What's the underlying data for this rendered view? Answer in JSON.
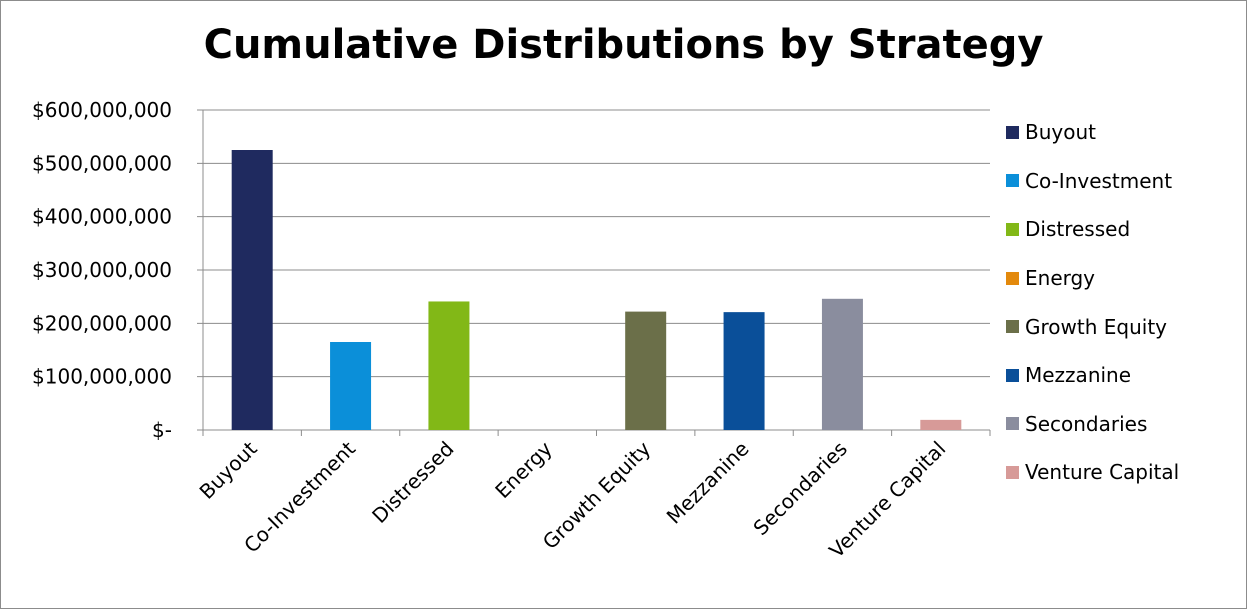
{
  "chart_data": {
    "type": "bar",
    "title": "Cumulative Distributions by Strategy",
    "categories": [
      "Buyout",
      "Co-Investment",
      "Distressed",
      "Energy",
      "Growth Equity",
      "Mezzanine",
      "Secondaries",
      "Venture Capital"
    ],
    "values": [
      525000000,
      165000000,
      241000000,
      0,
      222000000,
      221000000,
      246000000,
      19000000
    ],
    "colors": [
      "#1f2a5f",
      "#0b8fd9",
      "#82b817",
      "#e3890c",
      "#6b6f49",
      "#0a4f99",
      "#8a8d9e",
      "#d79a98"
    ],
    "ylim": [
      0,
      600000000
    ],
    "yticks": [
      0,
      100000000,
      200000000,
      300000000,
      400000000,
      500000000,
      600000000
    ],
    "ytick_labels": [
      "$-",
      "$100,000,000",
      "$200,000,000",
      "$300,000,000",
      "$400,000,000",
      "$500,000,000",
      "$600,000,000"
    ],
    "xlabel": "",
    "ylabel": "",
    "grid": true,
    "legend_position": "right",
    "legend": [
      "Buyout",
      "Co-Investment",
      "Distressed",
      "Energy",
      "Growth Equity",
      "Mezzanine",
      "Secondaries",
      "Venture Capital"
    ]
  }
}
